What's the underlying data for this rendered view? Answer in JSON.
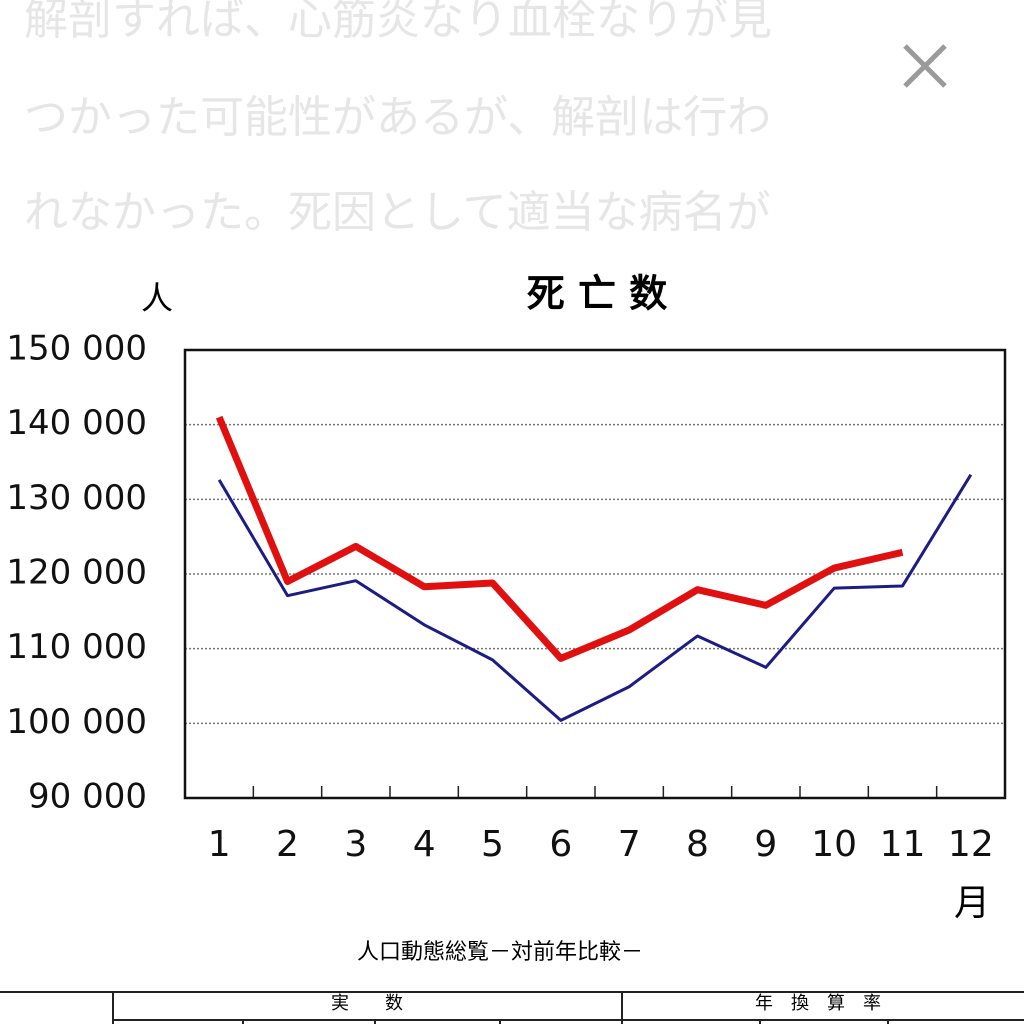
{
  "overlay_text": [
    "解剖すれば、心筋炎なり血栓なりが見",
    "つかった可能性があるが、解剖は行わ",
    "れなかった。死因として適当な病名が"
  ],
  "chart_data": {
    "type": "line",
    "title": "死 亡 数",
    "y_label": "人",
    "x_label": "月",
    "categories": [
      "1",
      "2",
      "3",
      "4",
      "5",
      "6",
      "7",
      "8",
      "9",
      "10",
      "11",
      "12"
    ],
    "series": [
      {
        "color": "#1c1c84",
        "values": [
          132600,
          117100,
          119100,
          113200,
          108500,
          100400,
          104900,
          111700,
          107500,
          118100,
          118400,
          133300
        ]
      },
      {
        "color": "#e01010",
        "values": [
          141000,
          119000,
          123700,
          118300,
          118800,
          108700,
          112500,
          117900,
          115800,
          120800,
          122900,
          null
        ]
      }
    ],
    "ylim": [
      90000,
      150000
    ],
    "yticks": [
      {
        "value": 90000,
        "label": "90 000"
      },
      {
        "value": 100000,
        "label": "100 000"
      },
      {
        "value": 110000,
        "label": "110 000"
      },
      {
        "value": 120000,
        "label": "120 000"
      },
      {
        "value": 130000,
        "label": "130 000"
      },
      {
        "value": 140000,
        "label": "140 000"
      },
      {
        "value": 150000,
        "label": "150 000"
      }
    ],
    "grid": true
  },
  "table": {
    "caption": "人口動態総覧－対前年比較－",
    "headers": [
      "実　　数",
      "年　換　算　率"
    ]
  }
}
